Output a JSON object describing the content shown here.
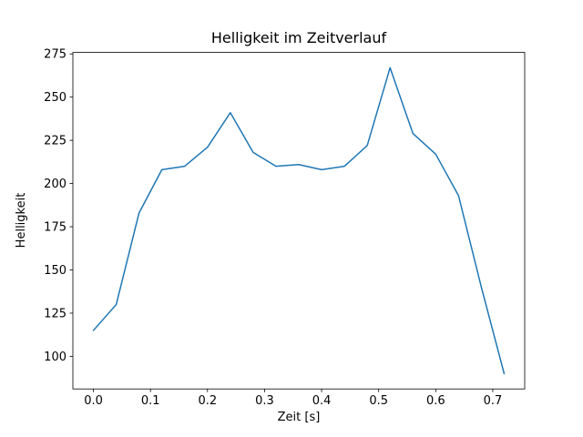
{
  "chart_data": {
    "type": "line",
    "title": "Helligkeit im Zeitverlauf",
    "xlabel": "Zeit [s]",
    "ylabel": "Helligkeit",
    "x": [
      0.0,
      0.04,
      0.08,
      0.12,
      0.16,
      0.2,
      0.24,
      0.28,
      0.32,
      0.36,
      0.4,
      0.44,
      0.48,
      0.52,
      0.56,
      0.6,
      0.64,
      0.68,
      0.72
    ],
    "y": [
      115,
      130,
      183,
      208,
      210,
      221,
      241,
      218,
      210,
      211,
      208,
      210,
      222,
      267,
      229,
      217,
      193,
      140,
      90
    ],
    "xlim": [
      -0.036,
      0.756
    ],
    "ylim": [
      81.15,
      275.85
    ],
    "xticks": [
      0.0,
      0.1,
      0.2,
      0.3,
      0.4,
      0.5,
      0.6,
      0.7
    ],
    "xtick_labels": [
      "0.0",
      "0.1",
      "0.2",
      "0.3",
      "0.4",
      "0.5",
      "0.6",
      "0.7"
    ],
    "yticks": [
      100,
      125,
      150,
      175,
      200,
      225,
      250,
      275
    ],
    "ytick_labels": [
      "100",
      "125",
      "150",
      "175",
      "200",
      "225",
      "250",
      "275"
    ],
    "line_color": "#1f77b4",
    "axis_color": "#000000",
    "background": "#ffffff",
    "grid": false,
    "legend": null
  }
}
